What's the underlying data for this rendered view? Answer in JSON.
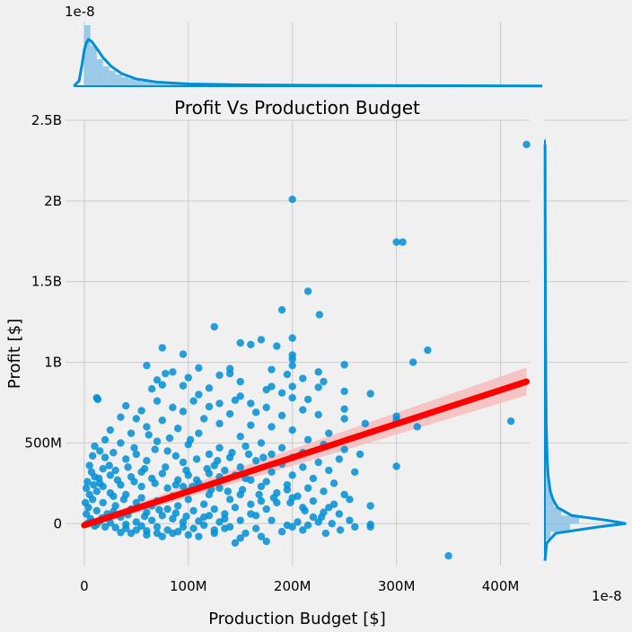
{
  "chart_data": {
    "type": "scatter",
    "title": "Profit Vs Production Budget",
    "xlabel": "Production Budget [$]",
    "ylabel": "Profit [$]",
    "xlim": [
      -18000000,
      428000000
    ],
    "ylim": [
      -260000000,
      2500000000
    ],
    "x_ticks": [
      0,
      100000000,
      200000000,
      300000000,
      400000000
    ],
    "x_tick_labels": [
      "0",
      "100M",
      "200M",
      "300M",
      "400M"
    ],
    "y_ticks": [
      0,
      500000000,
      1000000000,
      1500000000,
      2000000000,
      2500000000
    ],
    "y_tick_labels": [
      "0",
      "500M",
      "1B",
      "1.5B",
      "2B",
      "2.5B"
    ],
    "grid": true,
    "colors": {
      "points": "#008fd5",
      "regression": "#ff0000",
      "band": "#f7b6b6",
      "background": "#f0f0f0"
    },
    "regression": {
      "x": [
        0,
        425000000
      ],
      "y": [
        -10000000,
        880000000
      ],
      "ci_low": [
        -30000000,
        795000000
      ],
      "ci_high": [
        12000000,
        968000000
      ]
    },
    "marginal_x": {
      "scale_label": "1e-8"
    },
    "marginal_y": {
      "scale_label": "1e-8"
    },
    "points": [
      [
        425000000,
        2350000000
      ],
      [
        200000000,
        2010000000
      ],
      [
        300000000,
        1745000000
      ],
      [
        306000000,
        1745000000
      ],
      [
        215000000,
        1440000000
      ],
      [
        190000000,
        1325000000
      ],
      [
        226000000,
        1295000000
      ],
      [
        125000000,
        1220000000
      ],
      [
        200000000,
        1150000000
      ],
      [
        150000000,
        1120000000
      ],
      [
        160000000,
        1110000000
      ],
      [
        170000000,
        1140000000
      ],
      [
        75000000,
        1090000000
      ],
      [
        330000000,
        1075000000
      ],
      [
        185000000,
        1100000000
      ],
      [
        95000000,
        1050000000
      ],
      [
        200000000,
        1045000000
      ],
      [
        200000000,
        1020000000
      ],
      [
        316000000,
        1000000000
      ],
      [
        250000000,
        985000000
      ],
      [
        60000000,
        980000000
      ],
      [
        110000000,
        965000000
      ],
      [
        200000000,
        980000000
      ],
      [
        85000000,
        940000000
      ],
      [
        140000000,
        960000000
      ],
      [
        180000000,
        955000000
      ],
      [
        225000000,
        940000000
      ],
      [
        78000000,
        930000000
      ],
      [
        195000000,
        925000000
      ],
      [
        130000000,
        920000000
      ],
      [
        140000000,
        930000000
      ],
      [
        210000000,
        900000000
      ],
      [
        100000000,
        905000000
      ],
      [
        70000000,
        890000000
      ],
      [
        150000000,
        880000000
      ],
      [
        230000000,
        880000000
      ],
      [
        75000000,
        860000000
      ],
      [
        95000000,
        855000000
      ],
      [
        200000000,
        850000000
      ],
      [
        225000000,
        845000000
      ],
      [
        180000000,
        850000000
      ],
      [
        120000000,
        840000000
      ],
      [
        65000000,
        835000000
      ],
      [
        275000000,
        805000000
      ],
      [
        190000000,
        810000000
      ],
      [
        250000000,
        820000000
      ],
      [
        175000000,
        830000000
      ],
      [
        110000000,
        800000000
      ],
      [
        12000000,
        780000000
      ],
      [
        13000000,
        770000000
      ],
      [
        150000000,
        790000000
      ],
      [
        200000000,
        780000000
      ],
      [
        215000000,
        770000000
      ],
      [
        70000000,
        760000000
      ],
      [
        105000000,
        760000000
      ],
      [
        145000000,
        765000000
      ],
      [
        130000000,
        745000000
      ],
      [
        160000000,
        745000000
      ],
      [
        40000000,
        730000000
      ],
      [
        85000000,
        720000000
      ],
      [
        120000000,
        725000000
      ],
      [
        175000000,
        720000000
      ],
      [
        250000000,
        710000000
      ],
      [
        210000000,
        705000000
      ],
      [
        55000000,
        700000000
      ],
      [
        95000000,
        695000000
      ],
      [
        165000000,
        690000000
      ],
      [
        140000000,
        680000000
      ],
      [
        190000000,
        670000000
      ],
      [
        225000000,
        675000000
      ],
      [
        300000000,
        665000000
      ],
      [
        410000000,
        635000000
      ],
      [
        35000000,
        660000000
      ],
      [
        50000000,
        650000000
      ],
      [
        75000000,
        640000000
      ],
      [
        115000000,
        650000000
      ],
      [
        250000000,
        650000000
      ],
      [
        270000000,
        620000000
      ],
      [
        300000000,
        640000000
      ],
      [
        320000000,
        600000000
      ],
      [
        130000000,
        620000000
      ],
      [
        160000000,
        610000000
      ],
      [
        180000000,
        600000000
      ],
      [
        200000000,
        580000000
      ],
      [
        235000000,
        560000000
      ],
      [
        60000000,
        600000000
      ],
      [
        90000000,
        590000000
      ],
      [
        25000000,
        580000000
      ],
      [
        45000000,
        560000000
      ],
      [
        110000000,
        560000000
      ],
      [
        150000000,
        540000000
      ],
      [
        215000000,
        520000000
      ],
      [
        230000000,
        490000000
      ],
      [
        250000000,
        460000000
      ],
      [
        265000000,
        430000000
      ],
      [
        210000000,
        440000000
      ],
      [
        245000000,
        400000000
      ],
      [
        300000000,
        355000000
      ],
      [
        260000000,
        320000000
      ],
      [
        190000000,
        470000000
      ],
      [
        170000000,
        500000000
      ],
      [
        20000000,
        520000000
      ],
      [
        35000000,
        500000000
      ],
      [
        70000000,
        510000000
      ],
      [
        100000000,
        490000000
      ],
      [
        130000000,
        470000000
      ],
      [
        155000000,
        480000000
      ],
      [
        180000000,
        430000000
      ],
      [
        200000000,
        410000000
      ],
      [
        225000000,
        380000000
      ],
      [
        10000000,
        480000000
      ],
      [
        15000000,
        450000000
      ],
      [
        28000000,
        440000000
      ],
      [
        50000000,
        430000000
      ],
      [
        80000000,
        450000000
      ],
      [
        120000000,
        430000000
      ],
      [
        140000000,
        410000000
      ],
      [
        165000000,
        390000000
      ],
      [
        190000000,
        370000000
      ],
      [
        210000000,
        350000000
      ],
      [
        235000000,
        330000000
      ],
      [
        240000000,
        250000000
      ],
      [
        220000000,
        280000000
      ],
      [
        200000000,
        300000000
      ],
      [
        180000000,
        320000000
      ],
      [
        150000000,
        350000000
      ],
      [
        125000000,
        360000000
      ],
      [
        95000000,
        380000000
      ],
      [
        60000000,
        390000000
      ],
      [
        40000000,
        400000000
      ],
      [
        20000000,
        410000000
      ],
      [
        8000000,
        420000000
      ],
      [
        5000000,
        360000000
      ],
      [
        18000000,
        340000000
      ],
      [
        30000000,
        330000000
      ],
      [
        55000000,
        320000000
      ],
      [
        75000000,
        310000000
      ],
      [
        100000000,
        300000000
      ],
      [
        130000000,
        290000000
      ],
      [
        155000000,
        280000000
      ],
      [
        175000000,
        260000000
      ],
      [
        195000000,
        240000000
      ],
      [
        215000000,
        220000000
      ],
      [
        230000000,
        200000000
      ],
      [
        250000000,
        180000000
      ],
      [
        200000000,
        160000000
      ],
      [
        185000000,
        130000000
      ],
      [
        210000000,
        100000000
      ],
      [
        230000000,
        70000000
      ],
      [
        220000000,
        40000000
      ],
      [
        205000000,
        10000000
      ],
      [
        195000000,
        -10000000
      ],
      [
        180000000,
        20000000
      ],
      [
        160000000,
        60000000
      ],
      [
        145000000,
        100000000
      ],
      [
        170000000,
        140000000
      ],
      [
        150000000,
        180000000
      ],
      [
        130000000,
        220000000
      ],
      [
        110000000,
        250000000
      ],
      [
        90000000,
        270000000
      ],
      [
        65000000,
        280000000
      ],
      [
        45000000,
        290000000
      ],
      [
        25000000,
        300000000
      ],
      [
        10000000,
        290000000
      ],
      [
        3000000,
        260000000
      ],
      [
        15000000,
        250000000
      ],
      [
        35000000,
        240000000
      ],
      [
        55000000,
        230000000
      ],
      [
        80000000,
        220000000
      ],
      [
        100000000,
        200000000
      ],
      [
        120000000,
        180000000
      ],
      [
        140000000,
        150000000
      ],
      [
        160000000,
        120000000
      ],
      [
        175000000,
        90000000
      ],
      [
        165000000,
        50000000
      ],
      [
        150000000,
        20000000
      ],
      [
        140000000,
        -20000000
      ],
      [
        155000000,
        -60000000
      ],
      [
        165000000,
        -30000000
      ],
      [
        170000000,
        -80000000
      ],
      [
        150000000,
        -90000000
      ],
      [
        145000000,
        -120000000
      ],
      [
        175000000,
        -110000000
      ],
      [
        190000000,
        -50000000
      ],
      [
        200000000,
        -20000000
      ],
      [
        240000000,
        120000000
      ],
      [
        255000000,
        150000000
      ],
      [
        275000000,
        110000000
      ],
      [
        275000000,
        -5000000
      ],
      [
        275000000,
        -20000000
      ],
      [
        350000000,
        -200000000
      ],
      [
        125000000,
        -60000000
      ],
      [
        110000000,
        -80000000
      ],
      [
        100000000,
        -70000000
      ],
      [
        90000000,
        -50000000
      ],
      [
        80000000,
        -40000000
      ],
      [
        70000000,
        -60000000
      ],
      [
        60000000,
        -45000000
      ],
      [
        50000000,
        -40000000
      ],
      [
        40000000,
        -30000000
      ],
      [
        30000000,
        -25000000
      ],
      [
        20000000,
        -20000000
      ],
      [
        10000000,
        -15000000
      ],
      [
        95000000,
        -20000000
      ],
      [
        115000000,
        -10000000
      ],
      [
        130000000,
        10000000
      ],
      [
        120000000,
        50000000
      ],
      [
        105000000,
        80000000
      ],
      [
        90000000,
        110000000
      ],
      [
        70000000,
        140000000
      ],
      [
        55000000,
        160000000
      ],
      [
        40000000,
        180000000
      ],
      [
        25000000,
        190000000
      ],
      [
        12000000,
        200000000
      ],
      [
        5000000,
        180000000
      ],
      [
        8000000,
        150000000
      ],
      [
        18000000,
        130000000
      ],
      [
        30000000,
        110000000
      ],
      [
        45000000,
        90000000
      ],
      [
        60000000,
        70000000
      ],
      [
        75000000,
        50000000
      ],
      [
        85000000,
        30000000
      ],
      [
        95000000,
        10000000
      ],
      [
        105000000,
        -30000000
      ],
      [
        65000000,
        20000000
      ],
      [
        50000000,
        10000000
      ],
      [
        35000000,
        40000000
      ],
      [
        22000000,
        60000000
      ],
      [
        12000000,
        80000000
      ],
      [
        4000000,
        100000000
      ],
      [
        2000000,
        60000000
      ],
      [
        6000000,
        30000000
      ],
      [
        15000000,
        15000000
      ],
      [
        25000000,
        5000000
      ],
      [
        40000000,
        -5000000
      ],
      [
        55000000,
        -15000000
      ],
      [
        70000000,
        -20000000
      ],
      [
        85000000,
        -60000000
      ],
      [
        75000000,
        -80000000
      ],
      [
        60000000,
        -70000000
      ],
      [
        45000000,
        -60000000
      ],
      [
        35000000,
        -55000000
      ],
      [
        100000000,
        150000000
      ],
      [
        115000000,
        120000000
      ],
      [
        125000000,
        90000000
      ],
      [
        135000000,
        60000000
      ],
      [
        135000000,
        30000000
      ],
      [
        115000000,
        40000000
      ],
      [
        80000000,
        90000000
      ],
      [
        65000000,
        110000000
      ],
      [
        50000000,
        130000000
      ],
      [
        38000000,
        150000000
      ],
      [
        28000000,
        170000000
      ],
      [
        18000000,
        230000000
      ],
      [
        9000000,
        240000000
      ],
      [
        2000000,
        220000000
      ],
      [
        1000000,
        130000000
      ],
      [
        3000000,
        0
      ],
      [
        7000000,
        10000000
      ],
      [
        12000000,
        -5000000
      ],
      [
        17000000,
        35000000
      ],
      [
        28000000,
        75000000
      ],
      [
        42000000,
        55000000
      ],
      [
        58000000,
        45000000
      ],
      [
        72000000,
        85000000
      ],
      [
        88000000,
        65000000
      ],
      [
        98000000,
        45000000
      ],
      [
        110000000,
        15000000
      ],
      [
        125000000,
        -40000000
      ],
      [
        135000000,
        -30000000
      ],
      [
        85000000,
        170000000
      ],
      [
        95000000,
        230000000
      ],
      [
        108000000,
        270000000
      ],
      [
        120000000,
        310000000
      ],
      [
        135000000,
        330000000
      ],
      [
        145000000,
        300000000
      ],
      [
        160000000,
        270000000
      ],
      [
        170000000,
        230000000
      ],
      [
        185000000,
        190000000
      ],
      [
        195000000,
        210000000
      ],
      [
        205000000,
        170000000
      ],
      [
        220000000,
        140000000
      ],
      [
        235000000,
        100000000
      ],
      [
        245000000,
        60000000
      ],
      [
        255000000,
        20000000
      ],
      [
        260000000,
        -20000000
      ],
      [
        215000000,
        -10000000
      ],
      [
        225000000,
        10000000
      ],
      [
        62000000,
        550000000
      ],
      [
        82000000,
        530000000
      ],
      [
        102000000,
        520000000
      ],
      [
        48000000,
        470000000
      ],
      [
        68000000,
        460000000
      ],
      [
        88000000,
        420000000
      ],
      [
        108000000,
        400000000
      ],
      [
        128000000,
        390000000
      ],
      [
        142000000,
        440000000
      ],
      [
        158000000,
        430000000
      ],
      [
        172000000,
        410000000
      ],
      [
        24000000,
        360000000
      ],
      [
        42000000,
        350000000
      ],
      [
        58000000,
        340000000
      ],
      [
        78000000,
        350000000
      ],
      [
        98000000,
        330000000
      ],
      [
        118000000,
        340000000
      ],
      [
        7000000,
        320000000
      ],
      [
        14000000,
        280000000
      ],
      [
        32000000,
        270000000
      ],
      [
        48000000,
        260000000
      ],
      [
        68000000,
        250000000
      ],
      [
        88000000,
        240000000
      ],
      [
        104000000,
        230000000
      ],
      [
        122000000,
        210000000
      ],
      [
        138000000,
        200000000
      ],
      [
        152000000,
        210000000
      ],
      [
        168000000,
        180000000
      ],
      [
        182000000,
        160000000
      ],
      [
        198000000,
        130000000
      ],
      [
        212000000,
        80000000
      ],
      [
        228000000,
        40000000
      ],
      [
        238000000,
        0
      ],
      [
        246000000,
        -40000000
      ],
      [
        232000000,
        -60000000
      ],
      [
        210000000,
        -40000000
      ]
    ]
  }
}
